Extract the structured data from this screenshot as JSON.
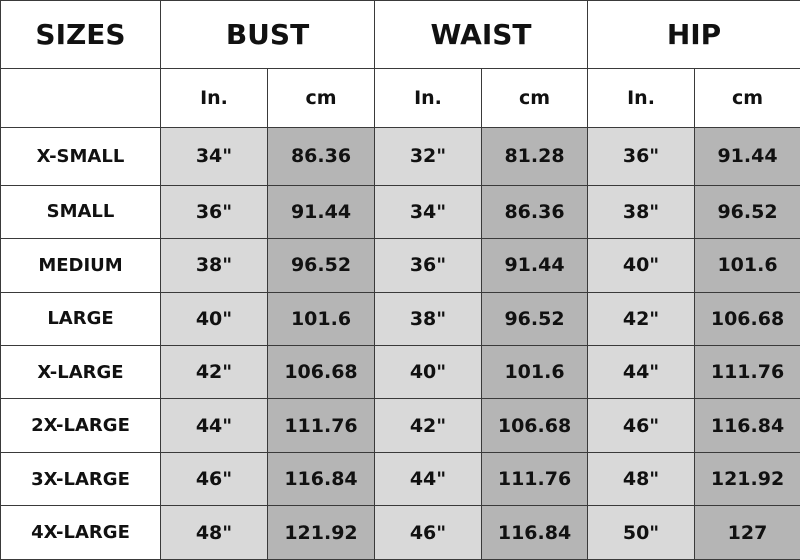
{
  "headers": {
    "sizes": "SIZES",
    "groups": [
      "BUST",
      "WAIST",
      "HIP"
    ],
    "units": [
      "In.",
      "cm",
      "In.",
      "cm",
      "In.",
      "cm"
    ]
  },
  "colors": {
    "inch_fill": "#d9d9d9",
    "cm_fill": "#b5b5b5",
    "border": "#3a3a3a"
  },
  "rows": [
    {
      "size": "X-SMALL",
      "values": [
        "34\"",
        "86.36",
        "32\"",
        "81.28",
        "36\"",
        "91.44"
      ]
    },
    {
      "size": "SMALL",
      "values": [
        "36\"",
        "91.44",
        "34\"",
        "86.36",
        "38\"",
        "96.52"
      ]
    },
    {
      "size": "MEDIUM",
      "values": [
        "38\"",
        "96.52",
        "36\"",
        "91.44",
        "40\"",
        "101.6"
      ]
    },
    {
      "size": "LARGE",
      "values": [
        "40\"",
        "101.6",
        "38\"",
        "96.52",
        "42\"",
        "106.68"
      ]
    },
    {
      "size": "X-LARGE",
      "values": [
        "42\"",
        "106.68",
        "40\"",
        "101.6",
        "44\"",
        "111.76"
      ]
    },
    {
      "size": "2X-LARGE",
      "values": [
        "44\"",
        "111.76",
        "42\"",
        "106.68",
        "46\"",
        "116.84"
      ]
    },
    {
      "size": "3X-LARGE",
      "values": [
        "46\"",
        "116.84",
        "44\"",
        "111.76",
        "48\"",
        "121.92"
      ]
    },
    {
      "size": "4X-LARGE",
      "values": [
        "48\"",
        "121.92",
        "46\"",
        "116.84",
        "50\"",
        "127"
      ]
    }
  ]
}
